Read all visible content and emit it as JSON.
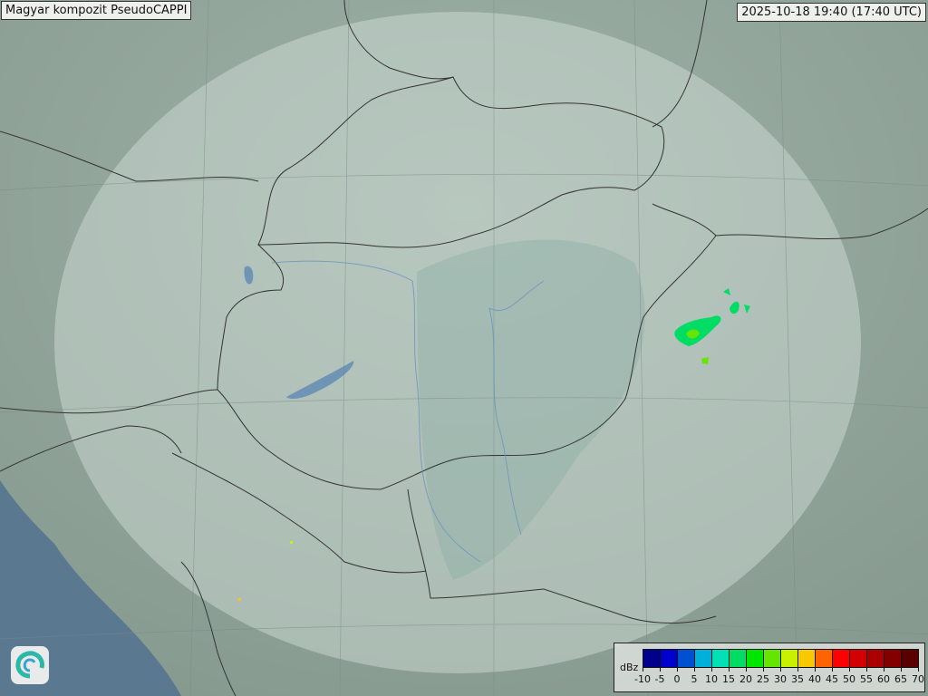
{
  "header": {
    "title": "Magyar kompozit  PseudoCAPPI",
    "timestamp": "2025-10-18 19:40 (17:40 UTC)"
  },
  "legend": {
    "unit": "dBz",
    "ticks": [
      "-10",
      "-5",
      "0",
      "5",
      "10",
      "15",
      "20",
      "25",
      "30",
      "35",
      "40",
      "45",
      "50",
      "55",
      "60",
      "65",
      "70"
    ],
    "colors": [
      "#00008c",
      "#0000cc",
      "#0050d2",
      "#00b0dc",
      "#00e0b4",
      "#00dc64",
      "#00e600",
      "#64e600",
      "#c8f000",
      "#f8c800",
      "#ff6400",
      "#ff0000",
      "#d20000",
      "#aa0000",
      "#820000",
      "#5a0000"
    ]
  },
  "logo": {
    "icon": "swirl-logo-icon"
  },
  "map": {
    "sea_color": "#5a7890",
    "land_color": "#8fa59a",
    "coverage_color": "#c8d8d2",
    "echo_colors": [
      "#00dc64",
      "#00e600",
      "#64e600",
      "#c8f000"
    ]
  }
}
